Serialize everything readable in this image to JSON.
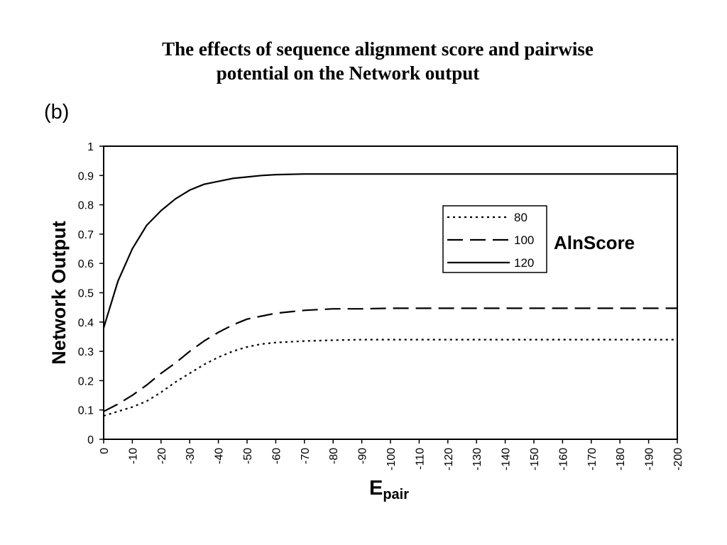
{
  "slide": {
    "title_line1": "The effects of sequence alignment score and pairwise",
    "title_line2": "potential on the Network output",
    "panel_label": "(b)"
  },
  "chart_data": {
    "type": "line",
    "title": "",
    "xlabel": "E",
    "xlabel_subscript": "pair",
    "ylabel": "Network Output",
    "xlim": [
      0,
      -200
    ],
    "ylim": [
      0,
      1
    ],
    "x_ticks": [
      "0",
      "-10",
      "-20",
      "-30",
      "-40",
      "-50",
      "-60",
      "-70",
      "-80",
      "-90",
      "-100",
      "-110",
      "-120",
      "-130",
      "-140",
      "-150",
      "-160",
      "-170",
      "-180",
      "-190",
      "-200"
    ],
    "y_ticks": [
      "0",
      "0.1",
      "0.2",
      "0.3",
      "0.4",
      "0.5",
      "0.6",
      "0.7",
      "0.8",
      "0.9",
      "1"
    ],
    "grid": false,
    "legend": {
      "title": "AlnScore",
      "placement": "right"
    },
    "x": [
      0,
      -5,
      -10,
      -15,
      -20,
      -25,
      -30,
      -35,
      -40,
      -45,
      -50,
      -55,
      -60,
      -70,
      -80,
      -90,
      -100,
      -120,
      -140,
      -160,
      -180,
      -200
    ],
    "series": [
      {
        "name": "80",
        "style": "dotted",
        "values": [
          0.08,
          0.095,
          0.11,
          0.13,
          0.16,
          0.195,
          0.225,
          0.255,
          0.28,
          0.3,
          0.315,
          0.325,
          0.33,
          0.335,
          0.338,
          0.34,
          0.34,
          0.34,
          0.34,
          0.34,
          0.34,
          0.34
        ]
      },
      {
        "name": "100",
        "style": "dashed",
        "values": [
          0.095,
          0.12,
          0.15,
          0.185,
          0.225,
          0.26,
          0.3,
          0.335,
          0.365,
          0.39,
          0.41,
          0.42,
          0.43,
          0.44,
          0.445,
          0.445,
          0.447,
          0.447,
          0.447,
          0.447,
          0.447,
          0.447
        ]
      },
      {
        "name": "120",
        "style": "solid",
        "values": [
          0.38,
          0.54,
          0.65,
          0.73,
          0.78,
          0.82,
          0.85,
          0.87,
          0.88,
          0.89,
          0.895,
          0.9,
          0.903,
          0.905,
          0.905,
          0.905,
          0.905,
          0.905,
          0.905,
          0.905,
          0.905,
          0.905
        ]
      }
    ]
  }
}
